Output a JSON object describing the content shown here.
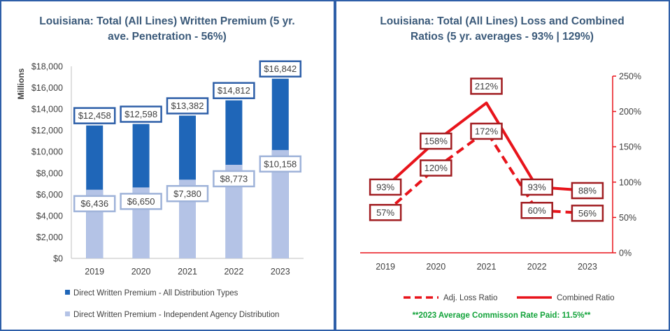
{
  "chart_data": [
    {
      "type": "bar",
      "title_line1": "Louisiana: Total (All Lines) Written Premium (5 yr.",
      "title_line2": "ave. Penetration - 56%)",
      "ylabel": "Millions",
      "ylim": [
        0,
        18000
      ],
      "yticks": [
        0,
        2000,
        4000,
        6000,
        8000,
        10000,
        12000,
        14000,
        16000,
        18000
      ],
      "ytick_labels": [
        "$0",
        "$2,000",
        "$4,000",
        "$6,000",
        "$8,000",
        "$10,000",
        "$12,000",
        "$14,000",
        "$16,000",
        "$18,000"
      ],
      "categories": [
        "2019",
        "2020",
        "2021",
        "2022",
        "2023"
      ],
      "series": [
        {
          "name": "Direct Written Premium - All Distribution Types",
          "color": "#1f66b8",
          "values": [
            12458,
            12598,
            13382,
            14812,
            16842
          ],
          "labels": [
            "$12,458",
            "$12,598",
            "$13,382",
            "$14,812",
            "$16,842"
          ]
        },
        {
          "name": "Direct Written Premium - Independent Agency Distribution",
          "color": "#b4c3e6",
          "values": [
            6436,
            6650,
            7380,
            8773,
            10158
          ],
          "labels": [
            "$6,436",
            "$6,650",
            "$7,380",
            "$8,773",
            "$10,158"
          ]
        }
      ]
    },
    {
      "type": "line",
      "title_line1": "Louisiana: Total (All Lines) Loss and Combined",
      "title_line2": "Ratios (5 yr. averages - 93% | 129%)",
      "ylim": [
        0,
        250
      ],
      "yticks": [
        0,
        50,
        100,
        150,
        200,
        250
      ],
      "ytick_labels": [
        "0%",
        "50%",
        "100%",
        "150%",
        "200%",
        "250%"
      ],
      "categories": [
        "2019",
        "2020",
        "2021",
        "2022",
        "2023"
      ],
      "series": [
        {
          "name": "Adj. Loss Ratio",
          "style": "dashed",
          "color": "#e8141b",
          "values": [
            57,
            120,
            172,
            60,
            56
          ],
          "labels": [
            "57%",
            "120%",
            "172%",
            "60%",
            "56%"
          ]
        },
        {
          "name": "Combined Ratio",
          "style": "solid",
          "color": "#e8141b",
          "values": [
            93,
            158,
            212,
            93,
            88
          ],
          "labels": [
            "93%",
            "158%",
            "212%",
            "93%",
            "88%"
          ]
        }
      ],
      "footnote": "**2023 Average Commisson Rate Paid: 11.5%**"
    }
  ],
  "colors": {
    "frame": "#2e5fa8",
    "title": "#3b5a7a",
    "label_border_dark": "#2e5fa8",
    "label_border_light": "#9fb3d9",
    "line_label_border": "#a11d21",
    "footnote": "#12a33a"
  }
}
